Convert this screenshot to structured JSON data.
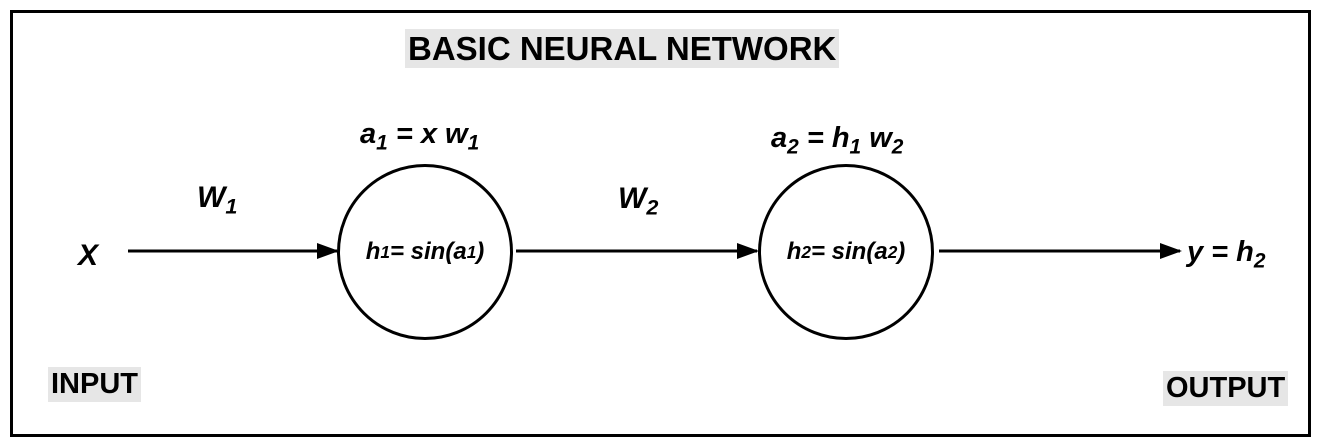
{
  "diagram": {
    "title": "BASIC NEURAL NETWORK",
    "input_label": "INPUT",
    "output_label": "OUTPUT",
    "input_var": "X",
    "weights": [
      {
        "var": "W",
        "sub": "1"
      },
      {
        "var": "W",
        "sub": "2"
      }
    ],
    "neurons": [
      {
        "activation": {
          "lhs": "a",
          "lhs_sub": "1",
          "rhs_pre": " = x w",
          "rhs_sub": "1",
          "rhs_post": ""
        },
        "hidden": {
          "lhs": "h",
          "lhs_sub": "1",
          "mid": " = sin(a",
          "mid_sub": "1",
          "post": ")"
        }
      },
      {
        "activation": {
          "lhs": "a",
          "lhs_sub": "2",
          "rhs_pre": " = h",
          "rhs_sub": "1",
          "rhs_post": " w",
          "rhs_post_sub": "2"
        },
        "hidden": {
          "lhs": "h",
          "lhs_sub": "2",
          "mid": " = sin(a",
          "mid_sub": "2",
          "post": ")"
        }
      }
    ],
    "output_eq": {
      "lhs": "y = h",
      "sub": "2"
    },
    "colors": {
      "stroke": "#000000",
      "tag_background": "#e6e6e6",
      "background": "#ffffff"
    }
  }
}
